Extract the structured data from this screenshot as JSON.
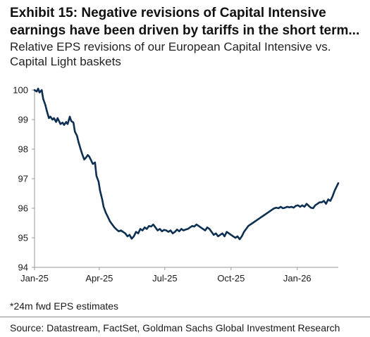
{
  "title": "Exhibit 15: Negative revisions of Capital Intensive earnings have been driven by tariffs in the short term...",
  "subtitle": "Relative EPS revisions of our European Capital Intensive vs. Capital Light baskets",
  "footnote": "*24m fwd EPS estimates",
  "source": "Source: Datastream, FactSet, Goldman Sachs Global Investment Research",
  "colors": {
    "line": "#0d2f52",
    "axis": "#999999",
    "text": "#1a1a1a"
  },
  "chart_data": {
    "type": "line",
    "title": "",
    "xlabel": "",
    "ylabel": "",
    "ylim": [
      94,
      100
    ],
    "yticks": [
      94,
      95,
      96,
      97,
      98,
      99,
      100
    ],
    "xlim": [
      "2025-01-01",
      "2026-02-27"
    ],
    "xtick_labels": [
      {
        "date": "2025-01-01",
        "label": "Jan-25"
      },
      {
        "date": "2025-04-01",
        "label": "Apr-25"
      },
      {
        "date": "2025-07-01",
        "label": "Jul-25"
      },
      {
        "date": "2025-10-01",
        "label": "Oct-25"
      },
      {
        "date": "2026-01-01",
        "label": "Jan-26"
      }
    ],
    "grid": false,
    "legend": "none",
    "series": [
      {
        "points": [
          [
            "2025-01-01",
            100.0
          ],
          [
            "2025-01-04",
            99.95
          ],
          [
            "2025-01-06",
            100.05
          ],
          [
            "2025-01-08",
            99.92
          ],
          [
            "2025-01-11",
            100.0
          ],
          [
            "2025-01-13",
            99.7
          ],
          [
            "2025-01-16",
            99.5
          ],
          [
            "2025-01-18",
            99.3
          ],
          [
            "2025-01-21",
            99.05
          ],
          [
            "2025-01-23",
            99.1
          ],
          [
            "2025-01-26",
            99.0
          ],
          [
            "2025-01-28",
            99.05
          ],
          [
            "2025-01-31",
            98.92
          ],
          [
            "2025-02-02",
            99.05
          ],
          [
            "2025-02-04",
            98.95
          ],
          [
            "2025-02-06",
            98.85
          ],
          [
            "2025-02-09",
            98.9
          ],
          [
            "2025-02-11",
            98.82
          ],
          [
            "2025-02-14",
            98.92
          ],
          [
            "2025-02-16",
            98.85
          ],
          [
            "2025-02-19",
            99.1
          ],
          [
            "2025-02-21",
            98.95
          ],
          [
            "2025-02-24",
            98.9
          ],
          [
            "2025-02-26",
            98.6
          ],
          [
            "2025-03-01",
            98.45
          ],
          [
            "2025-03-03",
            98.25
          ],
          [
            "2025-03-06",
            98.0
          ],
          [
            "2025-03-08",
            97.85
          ],
          [
            "2025-03-11",
            97.65
          ],
          [
            "2025-03-13",
            97.7
          ],
          [
            "2025-03-16",
            97.8
          ],
          [
            "2025-03-18",
            97.75
          ],
          [
            "2025-03-21",
            97.6
          ],
          [
            "2025-03-23",
            97.5
          ],
          [
            "2025-03-26",
            97.55
          ],
          [
            "2025-03-28",
            97.1
          ],
          [
            "2025-03-31",
            96.9
          ],
          [
            "2025-04-02",
            96.6
          ],
          [
            "2025-04-05",
            96.3
          ],
          [
            "2025-04-07",
            96.05
          ],
          [
            "2025-04-10",
            95.85
          ],
          [
            "2025-04-13",
            95.7
          ],
          [
            "2025-04-16",
            95.55
          ],
          [
            "2025-04-19",
            95.45
          ],
          [
            "2025-04-22",
            95.35
          ],
          [
            "2025-04-25",
            95.28
          ],
          [
            "2025-04-28",
            95.22
          ],
          [
            "2025-05-01",
            95.25
          ],
          [
            "2025-05-04",
            95.2
          ],
          [
            "2025-05-07",
            95.15
          ],
          [
            "2025-05-10",
            95.05
          ],
          [
            "2025-05-13",
            95.1
          ],
          [
            "2025-05-16",
            94.97
          ],
          [
            "2025-05-19",
            95.05
          ],
          [
            "2025-05-22",
            95.2
          ],
          [
            "2025-05-25",
            95.15
          ],
          [
            "2025-05-28",
            95.3
          ],
          [
            "2025-05-31",
            95.25
          ],
          [
            "2025-06-03",
            95.35
          ],
          [
            "2025-06-06",
            95.3
          ],
          [
            "2025-06-09",
            95.4
          ],
          [
            "2025-06-12",
            95.38
          ],
          [
            "2025-06-15",
            95.45
          ],
          [
            "2025-06-18",
            95.35
          ],
          [
            "2025-06-21",
            95.25
          ],
          [
            "2025-06-24",
            95.3
          ],
          [
            "2025-06-27",
            95.22
          ],
          [
            "2025-06-30",
            95.27
          ],
          [
            "2025-07-03",
            95.25
          ],
          [
            "2025-07-06",
            95.2
          ],
          [
            "2025-07-09",
            95.25
          ],
          [
            "2025-07-12",
            95.15
          ],
          [
            "2025-07-15",
            95.2
          ],
          [
            "2025-07-18",
            95.28
          ],
          [
            "2025-07-21",
            95.22
          ],
          [
            "2025-07-24",
            95.3
          ],
          [
            "2025-07-27",
            95.25
          ],
          [
            "2025-07-30",
            95.28
          ],
          [
            "2025-08-02",
            95.3
          ],
          [
            "2025-08-05",
            95.35
          ],
          [
            "2025-08-08",
            95.4
          ],
          [
            "2025-08-11",
            95.38
          ],
          [
            "2025-08-14",
            95.45
          ],
          [
            "2025-08-17",
            95.4
          ],
          [
            "2025-08-20",
            95.35
          ],
          [
            "2025-08-23",
            95.3
          ],
          [
            "2025-08-26",
            95.25
          ],
          [
            "2025-08-29",
            95.35
          ],
          [
            "2025-09-01",
            95.3
          ],
          [
            "2025-09-04",
            95.2
          ],
          [
            "2025-09-07",
            95.1
          ],
          [
            "2025-09-10",
            95.15
          ],
          [
            "2025-09-13",
            95.05
          ],
          [
            "2025-09-16",
            95.1
          ],
          [
            "2025-09-19",
            95.15
          ],
          [
            "2025-09-22",
            95.05
          ],
          [
            "2025-09-25",
            95.2
          ],
          [
            "2025-09-28",
            95.15
          ],
          [
            "2025-10-01",
            95.1
          ],
          [
            "2025-10-04",
            95.05
          ],
          [
            "2025-10-07",
            95.0
          ],
          [
            "2025-10-10",
            95.05
          ],
          [
            "2025-10-13",
            94.95
          ],
          [
            "2025-10-16",
            95.05
          ],
          [
            "2025-10-19",
            95.2
          ],
          [
            "2025-10-22",
            95.3
          ],
          [
            "2025-10-25",
            95.4
          ],
          [
            "2025-10-28",
            95.45
          ],
          [
            "2025-10-31",
            95.5
          ],
          [
            "2025-11-03",
            95.55
          ],
          [
            "2025-11-06",
            95.6
          ],
          [
            "2025-11-09",
            95.65
          ],
          [
            "2025-11-12",
            95.7
          ],
          [
            "2025-11-15",
            95.75
          ],
          [
            "2025-11-18",
            95.8
          ],
          [
            "2025-11-21",
            95.85
          ],
          [
            "2025-11-24",
            95.9
          ],
          [
            "2025-11-27",
            95.95
          ],
          [
            "2025-11-30",
            96.0
          ],
          [
            "2025-12-03",
            96.02
          ],
          [
            "2025-12-06",
            96.0
          ],
          [
            "2025-12-09",
            96.05
          ],
          [
            "2025-12-12",
            96.0
          ],
          [
            "2025-12-15",
            96.02
          ],
          [
            "2025-12-18",
            96.05
          ],
          [
            "2025-12-21",
            96.03
          ],
          [
            "2025-12-24",
            96.05
          ],
          [
            "2025-12-27",
            96.02
          ],
          [
            "2025-12-30",
            96.08
          ],
          [
            "2026-01-02",
            96.1
          ],
          [
            "2026-01-05",
            96.05
          ],
          [
            "2026-01-08",
            96.1
          ],
          [
            "2026-01-11",
            96.05
          ],
          [
            "2026-01-14",
            96.15
          ],
          [
            "2026-01-17",
            96.08
          ],
          [
            "2026-01-20",
            96.02
          ],
          [
            "2026-01-23",
            96.0
          ],
          [
            "2026-01-26",
            96.1
          ],
          [
            "2026-01-29",
            96.15
          ],
          [
            "2026-02-01",
            96.2
          ],
          [
            "2026-02-04",
            96.2
          ],
          [
            "2026-02-07",
            96.25
          ],
          [
            "2026-02-10",
            96.15
          ],
          [
            "2026-02-13",
            96.3
          ],
          [
            "2026-02-16",
            96.25
          ],
          [
            "2026-02-19",
            96.4
          ],
          [
            "2026-02-22",
            96.6
          ],
          [
            "2026-02-25",
            96.75
          ],
          [
            "2026-02-27",
            96.85
          ]
        ]
      }
    ]
  }
}
